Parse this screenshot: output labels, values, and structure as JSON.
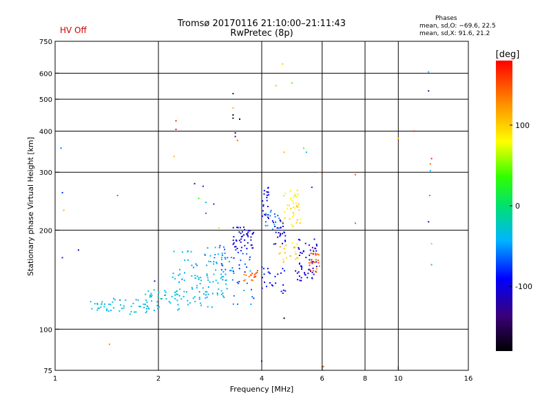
{
  "header": {
    "hv_status": "HV Off",
    "hv_color": "#cc0000",
    "title_line1": "Tromsø 20170116 21:10:00–21:11:43",
    "title_line2": "RwPretec (8p)",
    "stats_heading": "Phases",
    "stats_o": "mean, sd,O: −69.6, 22.5",
    "stats_x": "mean, sd,X:  91.6, 21.2"
  },
  "chart_data": {
    "type": "scatter",
    "title": "Tromsø 20170116 21:10:00–21:11:43",
    "xlabel": "Frequency [MHz]",
    "ylabel": "Stationary phase Virtual Height [km]",
    "xscale": "log",
    "yscale": "log",
    "xlim": [
      1,
      16
    ],
    "ylim": [
      75,
      750
    ],
    "xticks": [
      1,
      2,
      4,
      6,
      8,
      10,
      16
    ],
    "xtick_labels": [
      "1",
      "2",
      "4",
      "6",
      "8",
      "10",
      "16"
    ],
    "xgrid": [
      2,
      4,
      6,
      8,
      10
    ],
    "yticks": [
      75,
      100,
      200,
      300,
      400,
      500,
      600,
      750
    ],
    "ytick_labels": [
      "75",
      "100",
      "200",
      "300",
      "400",
      "500",
      "600",
      "750"
    ],
    "ygrid": [
      100,
      200,
      300,
      400,
      500,
      600
    ],
    "colorbar": {
      "label": "[deg]",
      "range": [
        -180,
        180
      ],
      "ticks": [
        100,
        0,
        -100
      ],
      "tick_labels": [
        "100",
        "0",
        "-100"
      ]
    },
    "series": [
      {
        "name": "points",
        "points": [
          [
            1.04,
            355,
            -60
          ],
          [
            1.05,
            260,
            -80
          ],
          [
            1.06,
            230,
            110
          ],
          [
            1.05,
            165,
            -80
          ],
          [
            1.17,
            174,
            -120
          ],
          [
            1.44,
            90,
            130
          ],
          [
            1.52,
            255,
            150
          ],
          [
            1.95,
            140,
            -110
          ],
          [
            2.25,
            430,
            170
          ],
          [
            2.25,
            405,
            170
          ],
          [
            2.22,
            335,
            110
          ],
          [
            2.7,
            272,
            -80
          ],
          [
            2.55,
            277,
            -120
          ],
          [
            2.62,
            250,
            40
          ],
          [
            2.75,
            243,
            -40
          ],
          [
            2.9,
            240,
            -80
          ],
          [
            2.75,
            225,
            -60
          ],
          [
            3.0,
            203,
            100
          ],
          [
            3.3,
            520,
            -150
          ],
          [
            3.3,
            470,
            110
          ],
          [
            3.3,
            448,
            -170
          ],
          [
            3.3,
            438,
            -170
          ],
          [
            3.35,
            395,
            -170
          ],
          [
            3.35,
            385,
            -130
          ],
          [
            3.4,
            375,
            140
          ],
          [
            3.45,
            435,
            -180
          ],
          [
            4.0,
            355,
            150
          ],
          [
            4.0,
            80,
            -110
          ],
          [
            4.4,
            550,
            110
          ],
          [
            4.6,
            640,
            100
          ],
          [
            4.65,
            345,
            110
          ],
          [
            4.9,
            560,
            40
          ],
          [
            5.3,
            355,
            40
          ],
          [
            5.4,
            345,
            -40
          ],
          [
            5.6,
            270,
            -80
          ],
          [
            5.9,
            300,
            140
          ],
          [
            4.65,
            108,
            -190
          ],
          [
            6.05,
            77,
            150
          ],
          [
            7.5,
            295,
            150
          ],
          [
            7.5,
            210,
            150
          ],
          [
            10.0,
            380,
            110
          ],
          [
            11.1,
            400,
            170
          ],
          [
            12.25,
            605,
            -40
          ],
          [
            12.25,
            530,
            -130
          ],
          [
            12.5,
            330,
            170
          ],
          [
            12.4,
            318,
            140
          ],
          [
            12.4,
            303,
            -40
          ],
          [
            12.35,
            255,
            -40
          ],
          [
            12.25,
            212,
            -120
          ],
          [
            12.5,
            182,
            110
          ],
          [
            12.5,
            157,
            -40
          ]
        ]
      }
    ],
    "clusters": [
      {
        "f": [
          1.27,
          1.45
        ],
        "h": [
          113,
          122
        ],
        "count": 18,
        "phase": [
          -45,
          -25
        ]
      },
      {
        "f": [
          1.45,
          1.9
        ],
        "h": [
          111,
          124
        ],
        "count": 30,
        "phase": [
          -45,
          -25
        ]
      },
      {
        "f": [
          1.8,
          2.3
        ],
        "h": [
          114,
          132
        ],
        "count": 40,
        "phase": [
          -45,
          -25
        ]
      },
      {
        "f": [
          2.2,
          3.2
        ],
        "h": [
          125,
          148
        ],
        "count": 60,
        "phase": [
          -50,
          -25
        ]
      },
      {
        "f": [
          2.2,
          3.3
        ],
        "h": [
          140,
          178
        ],
        "count": 50,
        "phase": [
          -60,
          -30
        ]
      },
      {
        "f": [
          2.25,
          2.9
        ],
        "h": [
          116,
          126
        ],
        "count": 15,
        "phase": [
          -45,
          -30
        ]
      },
      {
        "f": [
          3.0,
          3.7
        ],
        "h": [
          150,
          180
        ],
        "count": 25,
        "phase": [
          -85,
          -55
        ]
      },
      {
        "f": [
          3.3,
          3.8
        ],
        "h": [
          175,
          205
        ],
        "count": 45,
        "phase": [
          -120,
          -90
        ]
      },
      {
        "f": [
          3.55,
          3.9
        ],
        "h": [
          140,
          152
        ],
        "count": 18,
        "phase": [
          130,
          160
        ]
      },
      {
        "f": [
          3.3,
          3.8
        ],
        "h": [
          118,
          152
        ],
        "count": 15,
        "phase": [
          -80,
          -40
        ]
      },
      {
        "f": [
          4.0,
          4.2
        ],
        "h": [
          215,
          280
        ],
        "count": 22,
        "phase": [
          -110,
          -80
        ]
      },
      {
        "f": [
          4.1,
          4.5
        ],
        "h": [
          200,
          230
        ],
        "count": 15,
        "phase": [
          -70,
          -40
        ]
      },
      {
        "f": [
          4.3,
          4.75
        ],
        "h": [
          180,
          215
        ],
        "count": 25,
        "phase": [
          -120,
          -90
        ]
      },
      {
        "f": [
          4.6,
          5.2
        ],
        "h": [
          205,
          265
        ],
        "count": 40,
        "phase": [
          70,
          110
        ]
      },
      {
        "f": [
          4.5,
          5.1
        ],
        "h": [
          160,
          185
        ],
        "count": 20,
        "phase": [
          80,
          120
        ]
      },
      {
        "f": [
          4.0,
          4.7
        ],
        "h": [
          128,
          155
        ],
        "count": 25,
        "phase": [
          -110,
          -80
        ]
      },
      {
        "f": [
          5.0,
          5.8
        ],
        "h": [
          140,
          190
        ],
        "count": 55,
        "phase": [
          -115,
          -90
        ]
      },
      {
        "f": [
          5.5,
          5.9
        ],
        "h": [
          145,
          175
        ],
        "count": 25,
        "phase": [
          130,
          170
        ]
      }
    ]
  }
}
